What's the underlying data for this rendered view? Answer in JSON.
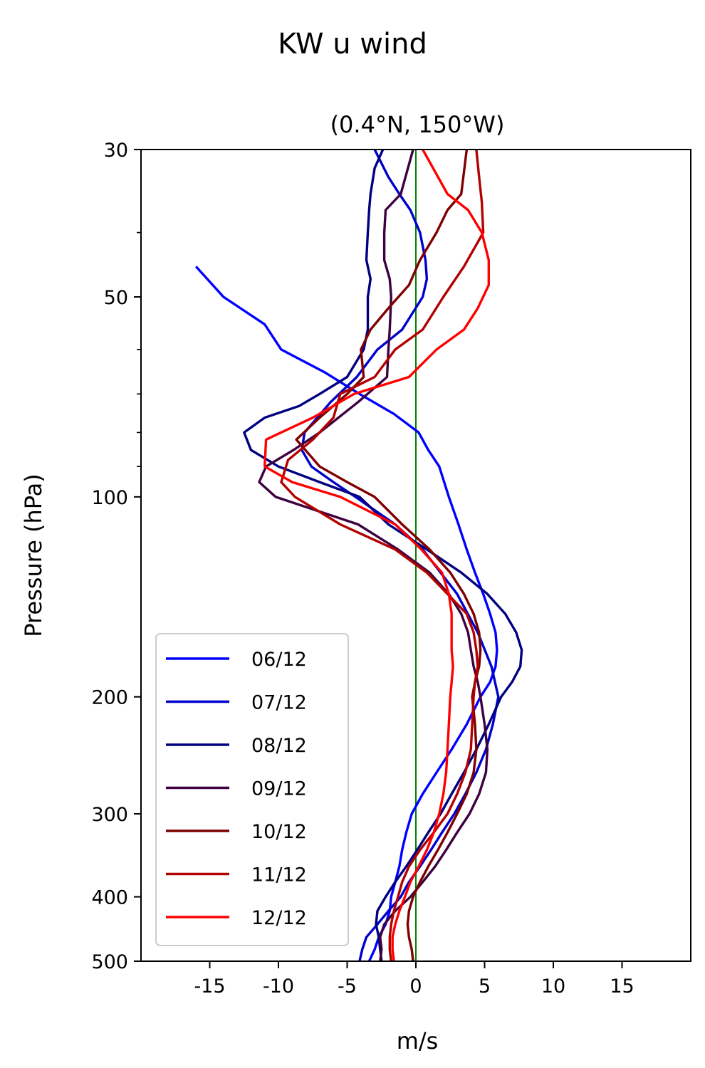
{
  "chart_data": {
    "type": "line",
    "suptitle": "KW u wind",
    "title": "(0.4°N, 150°W)",
    "xlabel": "m/s",
    "ylabel": "Pressure (hPa)",
    "xlim": [
      -20,
      20
    ],
    "ylim": [
      500,
      30
    ],
    "yscale": "log",
    "xticks": [
      -15,
      -10,
      -5,
      0,
      5,
      10,
      15
    ],
    "xtick_labels": [
      "-15",
      "-10",
      "-5",
      "0",
      "5",
      "10",
      "15"
    ],
    "yticks": [
      30,
      50,
      100,
      200,
      300,
      400,
      500
    ],
    "ytick_labels": [
      "30",
      "50",
      "100",
      "200",
      "300",
      "400",
      "500"
    ],
    "y_minor_ticks": [
      40,
      60,
      70,
      80,
      90
    ],
    "zero_line_color": "#008000",
    "legend_position": "lower-left",
    "series": [
      {
        "name": "06/12",
        "color": "#0000ff",
        "x": [
          -3.4,
          -3.0,
          -2.7,
          -2.2,
          -1.9,
          -1.8,
          -1.5,
          -1.2,
          -1.0,
          -0.7,
          -0.3,
          0.5,
          1.5,
          2.6,
          3.7,
          4.7,
          5.4,
          5.8,
          5.9,
          5.8,
          5.4,
          4.9,
          4.3,
          3.7,
          3.1,
          2.4,
          1.7,
          0.9,
          0.2,
          -1.6,
          -4.1,
          -6.6,
          -9.8,
          -11.0,
          -14.0,
          -16.0
        ],
        "y": [
          500,
          480,
          460,
          440,
          420,
          400,
          380,
          360,
          340,
          320,
          300,
          280,
          260,
          240,
          220,
          200,
          190,
          180,
          170,
          160,
          150,
          140,
          130,
          120,
          110,
          100,
          90,
          85,
          80,
          75,
          70,
          65,
          60,
          55,
          50,
          45
        ]
      },
      {
        "name": "07/12",
        "color": "#0000cc",
        "x": [
          -4.1,
          -3.9,
          -3.6,
          -2.8,
          -2.0,
          -1.1,
          -0.5,
          0.3,
          1.1,
          1.9,
          2.8,
          3.6,
          4.4,
          5.1,
          5.6,
          6.0,
          5.5,
          4.5,
          3.0,
          0.5,
          -1.5,
          -4.4,
          -6.0,
          -7.6,
          -8.3,
          -8.1,
          -6.2,
          -4.3,
          -2.8,
          -1.0,
          0.5,
          0.8,
          0.7,
          0.3,
          -0.4,
          -1.2,
          -2.0,
          -3.0
        ],
        "y": [
          500,
          480,
          460,
          440,
          420,
          400,
          380,
          360,
          340,
          320,
          300,
          280,
          260,
          240,
          220,
          200,
          180,
          160,
          140,
          120,
          110,
          100,
          95,
          90,
          85,
          80,
          72,
          66,
          60,
          56,
          50,
          47,
          44,
          40,
          37,
          35,
          33,
          30
        ]
      },
      {
        "name": "08/12",
        "color": "#000080",
        "x": [
          -2.5,
          -2.6,
          -2.7,
          -2.9,
          -2.8,
          -2.2,
          -1.5,
          -0.7,
          0.1,
          0.9,
          1.8,
          2.6,
          3.5,
          4.4,
          5.3,
          6.2,
          7.0,
          7.6,
          7.7,
          7.3,
          6.5,
          5.2,
          3.3,
          0.8,
          -2.0,
          -4.1,
          -7.0,
          -10.0,
          -12.0,
          -12.5,
          -11.0,
          -8.5,
          -7.0,
          -5.0,
          -3.8,
          -3.5,
          -3.5,
          -3.3,
          -3.6,
          -3.5,
          -3.4,
          -3.3,
          -3.0,
          -2.4
        ],
        "y": [
          500,
          480,
          460,
          440,
          420,
          400,
          380,
          360,
          340,
          320,
          300,
          280,
          260,
          240,
          220,
          200,
          190,
          180,
          170,
          160,
          150,
          140,
          130,
          120,
          110,
          100,
          95,
          90,
          85,
          80,
          76,
          73,
          70,
          66,
          60,
          56,
          50,
          47,
          44,
          40,
          37,
          35,
          32,
          30
        ]
      },
      {
        "name": "09/12",
        "color": "#3d0040",
        "x": [
          -2.6,
          -2.5,
          -2.6,
          -2.3,
          -1.5,
          -0.4,
          0.5,
          1.4,
          2.2,
          3.0,
          3.9,
          4.6,
          5.1,
          5.2,
          5.0,
          4.7,
          4.5,
          4.2,
          4.0,
          3.8,
          3.3,
          2.4,
          1.0,
          -1.3,
          -4.2,
          -10.2,
          -11.4,
          -10.9,
          -8.9,
          -7.0,
          -4.2,
          -2.1,
          -2.0,
          -1.9,
          -1.8,
          -1.9,
          -2.3,
          -2.3,
          -2.2,
          -1.1,
          -0.2
        ],
        "y": [
          500,
          480,
          460,
          440,
          420,
          400,
          380,
          360,
          340,
          320,
          300,
          280,
          260,
          240,
          220,
          200,
          190,
          180,
          170,
          160,
          150,
          140,
          130,
          120,
          110,
          100,
          95,
          90,
          85,
          80,
          72,
          66,
          60,
          56,
          50,
          47,
          44,
          40,
          37,
          35,
          30
        ]
      },
      {
        "name": "10/12",
        "color": "#7f0000",
        "x": [
          -0.2,
          -0.3,
          -0.5,
          -0.6,
          -0.5,
          -0.2,
          0.3,
          0.9,
          1.6,
          2.3,
          3.0,
          3.7,
          4.2,
          4.4,
          4.3,
          4.1,
          4.3,
          4.6,
          4.7,
          4.6,
          4.2,
          3.5,
          2.5,
          1.0,
          -1.0,
          -3.0,
          -5.0,
          -7.0,
          -8.7,
          -7.0,
          -5.0,
          -3.8,
          -4.0,
          -3.3,
          -2.0,
          -0.5,
          0.3,
          1.5,
          2.3,
          3.3,
          3.7
        ],
        "y": [
          500,
          480,
          460,
          440,
          420,
          400,
          380,
          360,
          340,
          320,
          300,
          280,
          260,
          240,
          220,
          200,
          190,
          180,
          170,
          160,
          150,
          140,
          130,
          120,
          110,
          100,
          95,
          90,
          82,
          76,
          70,
          66,
          60,
          56,
          52,
          48,
          44,
          40,
          37,
          35,
          30
        ]
      },
      {
        "name": "11/12",
        "color": "#b30000",
        "x": [
          -1.8,
          -1.9,
          -1.9,
          -1.8,
          -1.6,
          -1.3,
          -1.0,
          -0.5,
          0.3,
          1.3,
          2.3,
          3.0,
          3.6,
          4.0,
          4.1,
          4.2,
          4.3,
          4.5,
          4.4,
          4.2,
          3.7,
          2.3,
          0.8,
          -1.5,
          -5.5,
          -8.8,
          -9.8,
          -9.3,
          -7.5,
          -6.0,
          -5.5,
          -3.0,
          -1.5,
          0.5,
          2.0,
          3.5,
          4.9,
          4.8,
          4.6,
          4.4
        ],
        "y": [
          500,
          480,
          460,
          440,
          420,
          400,
          380,
          360,
          340,
          320,
          300,
          280,
          260,
          240,
          220,
          200,
          190,
          180,
          170,
          160,
          150,
          140,
          130,
          120,
          110,
          100,
          95,
          88,
          82,
          76,
          70,
          66,
          60,
          56,
          50,
          45,
          40,
          36,
          33,
          30
        ]
      },
      {
        "name": "12/12",
        "color": "#ff0000",
        "x": [
          -1.6,
          -1.7,
          -1.7,
          -1.5,
          -1.2,
          -0.8,
          -0.4,
          0.2,
          0.8,
          1.3,
          1.7,
          2.0,
          2.2,
          2.3,
          2.4,
          2.5,
          2.6,
          2.7,
          2.6,
          2.6,
          2.6,
          2.4,
          1.9,
          0.4,
          -1.5,
          -5.5,
          -9.0,
          -11.0,
          -10.9,
          -7.5,
          -4.5,
          -0.5,
          1.5,
          3.5,
          4.5,
          5.3,
          5.3,
          4.8,
          3.8,
          2.3,
          0.5
        ],
        "y": [
          500,
          480,
          460,
          440,
          420,
          400,
          380,
          360,
          340,
          320,
          300,
          280,
          260,
          240,
          220,
          200,
          190,
          180,
          170,
          160,
          150,
          140,
          130,
          120,
          110,
          100,
          95,
          90,
          82,
          76,
          70,
          66,
          60,
          56,
          52,
          48,
          44,
          40,
          37,
          35,
          30
        ]
      }
    ]
  }
}
